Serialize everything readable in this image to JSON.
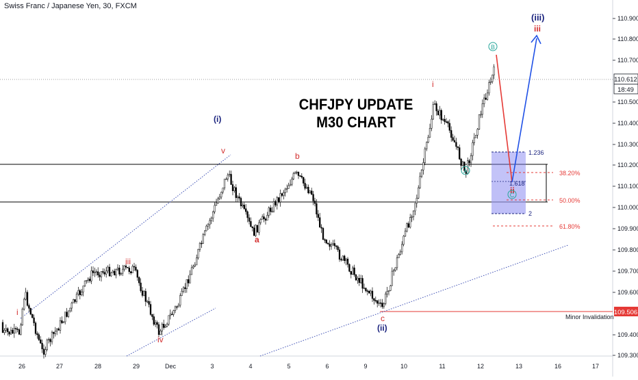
{
  "symbol_title": "Swiss Franc / Japanese Yen, 30, FXCM",
  "headline": {
    "line1": "CHFJPY UPDATE",
    "line2": "M30 CHART"
  },
  "price_axis": {
    "ticks": [
      "110.900",
      "110.800",
      "110.700",
      "110.500",
      "110.400",
      "110.300",
      "110.200",
      "110.100",
      "110.000",
      "109.900",
      "109.800",
      "109.700",
      "109.600",
      "109.400",
      "109.300"
    ],
    "current_price": "110.612",
    "countdown": "18:49",
    "invalidation_price": "109.506"
  },
  "time_axis": {
    "labels": [
      "26",
      "27",
      "28",
      "29",
      "Dec",
      "3",
      "4",
      "5",
      "6",
      "9",
      "10",
      "11",
      "12",
      "13",
      "16",
      "17"
    ]
  },
  "annotations": {
    "wave_i_start": "i",
    "wave_iii_left": "iii",
    "wave_iv": "iv",
    "wave_v": "v",
    "wave_a": "a",
    "wave_b": "b",
    "wave_c": "c",
    "wave_ii_circled": "(ii)",
    "wave_i_circled": "(i)",
    "wave_i_top": "i",
    "wave_A": "A",
    "wave_B": "B",
    "wave_C": "C",
    "wave_ii_proj": "ii",
    "wave_iii_proj": "iii",
    "wave_iii_circled_proj": "(iii)",
    "minor_invalidation": "Minor Invalidation"
  },
  "fib_levels": {
    "ext_1236": "1.236",
    "ext_1618": "1.618",
    "ext_2": "2",
    "ret_382": "38.20%",
    "ret_50": "50.00%",
    "ret_618": "61.80%"
  },
  "colors": {
    "wave_red": "#d32f2f",
    "wave_navy": "#1a237e",
    "projection_blue": "#1e50e6",
    "circled_teal": "#26a69a",
    "channel_blue": "#3f51b5",
    "fib_red": "#e53935",
    "target_box": "#7b7bf0",
    "invalidation_red": "#e53935"
  },
  "chart_data": {
    "type": "candlestick",
    "title": "Swiss Franc / Japanese Yen, 30, FXCM",
    "instrument": "CHFJPY",
    "timeframe": "30",
    "ylim": [
      109.28,
      111.0
    ],
    "last_price": 110.612,
    "invalidation_level": 109.506,
    "horizontal_levels": [
      110.2,
      110.025
    ],
    "swing_path": [
      {
        "x": "Nov 26",
        "y": 109.45
      },
      {
        "x": "Nov 26",
        "y": 109.6
      },
      {
        "x": "Nov 27",
        "y": 109.3
      },
      {
        "x": "Nov 28",
        "y": 109.7
      },
      {
        "x": "Nov 29",
        "y": 109.72
      },
      {
        "x": "Nov 29",
        "y": 109.4
      },
      {
        "x": "Dec 2",
        "y": 109.55
      },
      {
        "x": "Dec 3",
        "y": 110.2
      },
      {
        "x": "Dec 4",
        "y": 109.9
      },
      {
        "x": "Dec 5",
        "y": 110.2
      },
      {
        "x": "Dec 6",
        "y": 110.1
      },
      {
        "x": "Dec 6",
        "y": 109.9
      },
      {
        "x": "Dec 9",
        "y": 109.52
      },
      {
        "x": "Dec 10",
        "y": 110.1
      },
      {
        "x": "Dec 10",
        "y": 110.55
      },
      {
        "x": "Dec 11",
        "y": 110.4
      },
      {
        "x": "Dec 11",
        "y": 110.2
      },
      {
        "x": "Dec 12",
        "y": 110.55
      },
      {
        "x": "Dec 12",
        "y": 110.72
      }
    ],
    "projection": [
      {
        "x": "Dec 12",
        "y": 110.72
      },
      {
        "x": "Dec 13",
        "y": 110.1
      },
      {
        "x": "Dec 13",
        "y": 110.85
      }
    ],
    "fib_extension_zone": {
      "top": 110.26,
      "bottom": 109.97,
      "levels": [
        {
          "label": "1.236",
          "y": 110.26
        },
        {
          "label": "1.618",
          "y": 110.12
        },
        {
          "label": "2",
          "y": 109.97
        }
      ]
    },
    "fib_retracements": [
      {
        "label": "38.20%",
        "y": 110.16
      },
      {
        "label": "50.00%",
        "y": 110.04
      },
      {
        "label": "61.80%",
        "y": 109.91
      }
    ]
  }
}
